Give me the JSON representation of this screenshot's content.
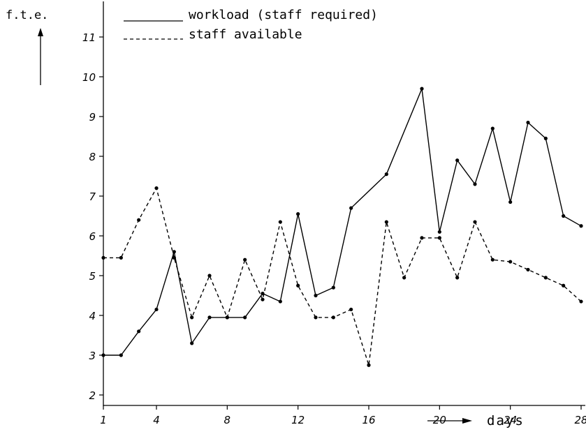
{
  "chart_data": {
    "type": "line",
    "ylabel": "f.t.e.",
    "xlabel": "days",
    "xlim": [
      1,
      28
    ],
    "ylim": [
      2,
      11
    ],
    "x_ticks": [
      "1",
      "4",
      "8",
      "12",
      "16",
      "20",
      "24",
      "28"
    ],
    "y_ticks": [
      "2",
      "3",
      "4",
      "5",
      "6",
      "7",
      "8",
      "9",
      "10",
      "11"
    ],
    "grid": false,
    "legend_position": "top",
    "series": [
      {
        "name": "workload (staff required)",
        "style": "solid",
        "x": [
          1,
          2,
          3,
          4,
          5,
          6,
          7,
          8,
          9,
          10,
          11,
          12,
          13,
          14,
          15,
          17,
          19,
          20,
          21,
          22,
          23,
          24,
          25,
          26,
          27,
          28
        ],
        "y": [
          3.0,
          3.0,
          3.6,
          4.15,
          5.6,
          3.3,
          3.95,
          3.95,
          3.95,
          4.55,
          4.35,
          6.55,
          4.5,
          4.7,
          6.7,
          7.55,
          9.7,
          6.1,
          7.9,
          7.3,
          8.7,
          6.85,
          8.85,
          8.45,
          6.5,
          6.25
        ]
      },
      {
        "name": "staff available",
        "style": "dashed",
        "x": [
          1,
          2,
          3,
          4,
          5,
          6,
          7,
          8,
          9,
          10,
          11,
          12,
          13,
          14,
          15,
          16,
          17,
          18,
          19,
          20,
          21,
          22,
          23,
          24,
          25,
          26,
          27,
          28
        ],
        "y": [
          5.45,
          5.45,
          6.4,
          7.2,
          5.45,
          3.95,
          5.0,
          3.95,
          5.4,
          4.4,
          6.35,
          4.75,
          3.95,
          3.95,
          4.15,
          2.75,
          6.35,
          4.95,
          5.95,
          5.95,
          4.95,
          6.35,
          5.4,
          5.35,
          5.15,
          4.95,
          4.75,
          4.35
        ]
      }
    ]
  }
}
